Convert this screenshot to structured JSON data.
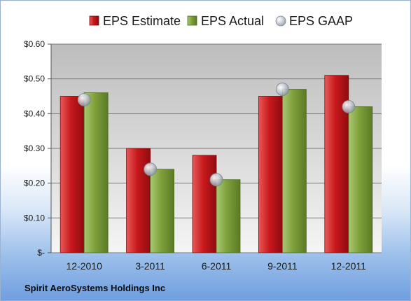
{
  "company": "Spirit AeroSystems Holdings Inc",
  "chart_data": {
    "type": "bar",
    "categories": [
      "12-2010",
      "3-2011",
      "6-2011",
      "9-2011",
      "12-2011"
    ],
    "series": [
      {
        "name": "EPS Estimate",
        "type": "bar",
        "color": "#c8181c",
        "values": [
          0.45,
          0.3,
          0.28,
          0.45,
          0.51
        ]
      },
      {
        "name": "EPS Actual",
        "type": "bar",
        "color": "#7fa03a",
        "values": [
          0.46,
          0.24,
          0.21,
          0.47,
          0.42
        ]
      },
      {
        "name": "EPS GAAP",
        "type": "scatter",
        "color": "#a8b0bc",
        "values": [
          0.44,
          0.24,
          0.21,
          0.47,
          0.42
        ]
      }
    ],
    "ylim": [
      0,
      0.6
    ],
    "yticks": [
      0,
      0.1,
      0.2,
      0.3,
      0.4,
      0.5,
      0.6
    ],
    "ytick_labels": [
      "$-",
      "$0.10",
      "$0.20",
      "$0.30",
      "$0.40",
      "$0.50",
      "$0.60"
    ],
    "grid": true,
    "legend_position": "top"
  }
}
